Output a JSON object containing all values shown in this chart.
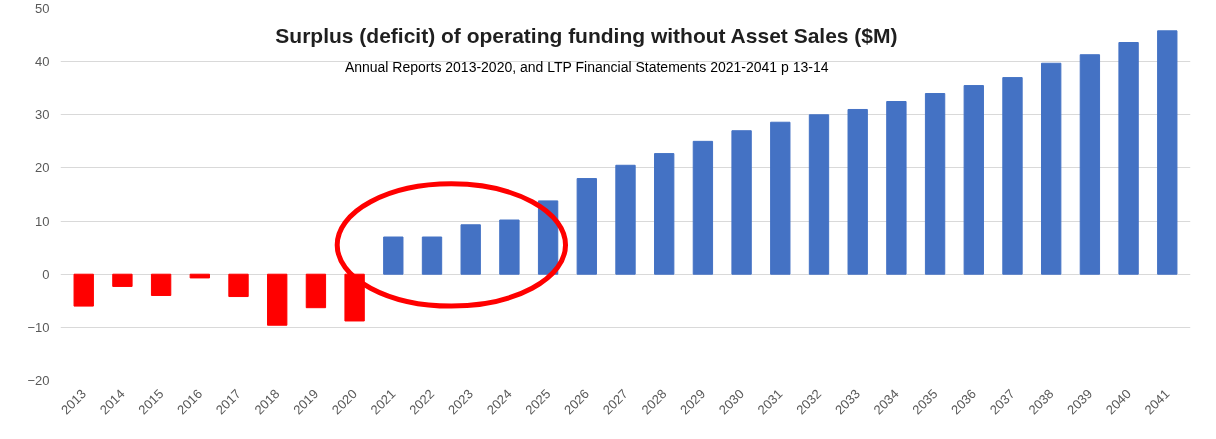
{
  "chart_data": {
    "type": "bar",
    "title": "Surplus (deficit) of operating funding without Asset Sales ($M)",
    "subtitle": "Annual Reports 2013-2020, and LTP Financial Statements 2021-2041 p 13-14",
    "categories": [
      "2013",
      "2014",
      "2015",
      "2016",
      "2017",
      "2018",
      "2019",
      "2020",
      "2021",
      "2022",
      "2023",
      "2024",
      "2025",
      "2026",
      "2027",
      "2028",
      "2029",
      "2030",
      "2031",
      "2032",
      "2033",
      "2034",
      "2035",
      "2036",
      "2037",
      "2038",
      "2039",
      "2040",
      "2041"
    ],
    "values": [
      -6,
      -2.3,
      -4,
      -0.7,
      -4.2,
      -9.6,
      -6.3,
      -8.8,
      7,
      7,
      9.3,
      10.2,
      13.8,
      18,
      20.5,
      22.7,
      25,
      27,
      28.6,
      30,
      31,
      32.5,
      34,
      35.5,
      37,
      39.7,
      41.3,
      43.6,
      45.8
    ],
    "colors": [
      "#ff0000",
      "#ff0000",
      "#ff0000",
      "#ff0000",
      "#ff0000",
      "#ff0000",
      "#ff0000",
      "#ff0000",
      "#4472c4",
      "#4472c4",
      "#4472c4",
      "#4472c4",
      "#4472c4",
      "#4472c4",
      "#4472c4",
      "#4472c4",
      "#4472c4",
      "#4472c4",
      "#4472c4",
      "#4472c4",
      "#4472c4",
      "#4472c4",
      "#4472c4",
      "#4472c4",
      "#4472c4",
      "#4472c4",
      "#4472c4",
      "#4472c4",
      "#4472c4"
    ],
    "ylim": [
      -20,
      50
    ],
    "yticks": [
      -20,
      -10,
      0,
      10,
      20,
      30,
      40,
      50
    ],
    "grid": "y"
  }
}
